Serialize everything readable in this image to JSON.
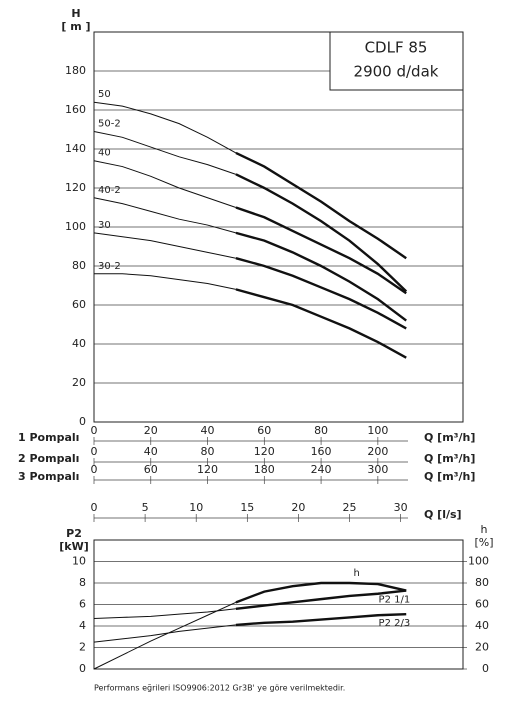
{
  "chart_data": [
    {
      "type": "line",
      "title": "CDLF 85",
      "subtitle": "2900 d/dak",
      "y_label": "H",
      "y_unit": "[ m ]",
      "x": [
        0,
        10,
        20,
        30,
        40,
        50,
        60,
        70,
        80,
        90,
        100,
        110
      ],
      "xlim": [
        0,
        130
      ],
      "ylim": [
        0,
        200
      ],
      "yticks": [
        0,
        20,
        40,
        60,
        80,
        100,
        120,
        140,
        160,
        180
      ],
      "grid": true,
      "series": [
        {
          "name": "50",
          "color": "#111111",
          "values": [
            164,
            162,
            158,
            153,
            146,
            138,
            131,
            122,
            113,
            103,
            94,
            84
          ]
        },
        {
          "name": "50-2",
          "color": "#111111",
          "values": [
            149,
            146,
            141,
            136,
            132,
            127,
            120,
            112,
            103,
            93,
            81,
            67
          ]
        },
        {
          "name": "40",
          "color": "#111111",
          "values": [
            134,
            131,
            126,
            120,
            115,
            110,
            105,
            98,
            91,
            84,
            76,
            66
          ]
        },
        {
          "name": "40-2",
          "color": "#111111",
          "values": [
            115,
            112,
            108,
            104,
            101,
            97,
            93,
            87,
            80,
            72,
            63,
            52
          ]
        },
        {
          "name": "30",
          "color": "#111111",
          "values": [
            97,
            95,
            93,
            90,
            87,
            84,
            80,
            75,
            69,
            63,
            56,
            48
          ]
        },
        {
          "name": "30-2",
          "color": "#111111",
          "values": [
            76,
            76,
            75,
            73,
            71,
            68,
            64,
            60,
            54,
            48,
            41,
            33
          ]
        }
      ],
      "flow_axes": [
        {
          "name": "1 Pompalı",
          "label": "Q [m³/h]",
          "lim": [
            0,
            130
          ],
          "ticks": [
            0,
            20,
            40,
            60,
            80,
            100
          ]
        },
        {
          "name": "2 Pompalı",
          "label": "Q [m³/h]",
          "lim": [
            0,
            260
          ],
          "ticks": [
            0,
            40,
            80,
            120,
            160,
            200
          ]
        },
        {
          "name": "3 Pompalı",
          "label": "Q [m³/h]",
          "lim": [
            0,
            390
          ],
          "ticks": [
            0,
            60,
            120,
            180,
            240,
            300
          ]
        },
        {
          "label": "Q [l/s]",
          "lim": [
            0,
            36.1
          ],
          "ticks": [
            0,
            5,
            10,
            15,
            20,
            25,
            30
          ]
        }
      ]
    },
    {
      "type": "line",
      "y_label": "P2",
      "y_unit": "[kW]",
      "y2_label": "h",
      "y2_unit": "[%]",
      "x": [
        0,
        10,
        20,
        30,
        40,
        50,
        60,
        70,
        80,
        90,
        100,
        110
      ],
      "xlim": [
        0,
        130
      ],
      "ylim": [
        0,
        12
      ],
      "yticks": [
        0,
        2,
        4,
        6,
        8,
        10
      ],
      "y2lim": [
        0,
        120
      ],
      "y2ticks": [
        0,
        20,
        40,
        60,
        80,
        100
      ],
      "grid": true,
      "series": [
        {
          "name": "h",
          "axis": "y2",
          "color": "#111111",
          "values": [
            0,
            13,
            26,
            38,
            50,
            62,
            72,
            77,
            80,
            80,
            79,
            73
          ]
        },
        {
          "name": "P2 1/1",
          "color": "#111111",
          "values": [
            4.7,
            4.8,
            4.9,
            5.1,
            5.3,
            5.6,
            5.9,
            6.2,
            6.5,
            6.8,
            7.0,
            7.3
          ]
        },
        {
          "name": "P2 2/3",
          "color": "#111111",
          "values": [
            2.5,
            2.8,
            3.1,
            3.5,
            3.8,
            4.1,
            4.3,
            4.4,
            4.6,
            4.8,
            5.0,
            5.1
          ]
        }
      ]
    }
  ],
  "footer": "Performans eğrileri ISO9906:2012 Gr3B' ye göre verilmektedir."
}
